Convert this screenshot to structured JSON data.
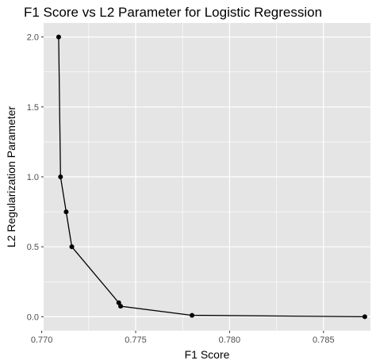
{
  "chart_data": {
    "type": "line",
    "title": "F1 Score vs L2 Parameter for Logistic Regression",
    "xlabel": "F1 Score",
    "ylabel": "L2 Regularization Parameter",
    "x_ticks": [
      "0.770",
      "0.775",
      "0.780",
      "0.785"
    ],
    "y_ticks": [
      "0.0",
      "0.5",
      "1.0",
      "1.5",
      "2.0"
    ],
    "xlim": [
      0.7701,
      0.7875
    ],
    "ylim": [
      -0.1,
      2.1
    ],
    "grid": true,
    "legend": "none",
    "colors": {
      "panel_background": "#e5e5e5",
      "grid": "#ffffff",
      "line": "#000000",
      "point": "#000000"
    },
    "series": [
      {
        "x": [
          0.7709,
          0.771,
          0.7713,
          0.7716,
          0.7741,
          0.7742,
          0.778,
          0.7872
        ],
        "y": [
          2.0,
          1.0,
          0.75,
          0.5,
          0.1,
          0.075,
          0.01,
          0.0
        ]
      }
    ]
  }
}
